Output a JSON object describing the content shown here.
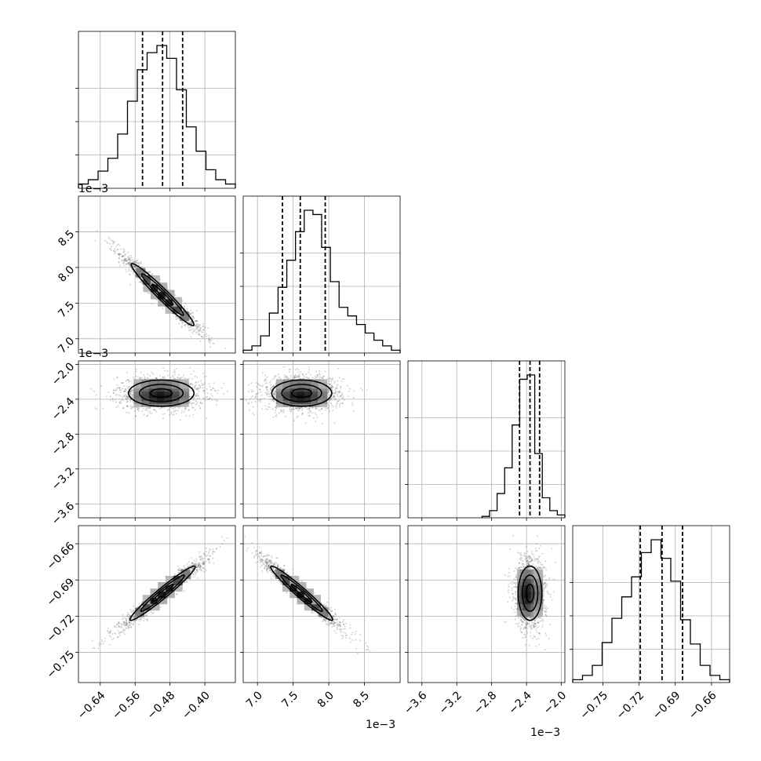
{
  "chart_data": {
    "type": "corner",
    "grid": true,
    "parameters": [
      {
        "range": [
          -0.69,
          -0.33
        ],
        "ticks": [
          -0.64,
          -0.56,
          -0.48,
          -0.4
        ],
        "tick_labels": [
          "−0.64",
          "−0.56",
          "−0.48",
          "−0.40"
        ],
        "offset": "1e−3",
        "quantiles": [
          -0.543,
          -0.497,
          -0.451
        ]
      },
      {
        "range": [
          6.8,
          9.0
        ],
        "ticks": [
          7.0,
          7.5,
          8.0,
          8.5
        ],
        "tick_labels": [
          "7.0",
          "7.5",
          "8.0",
          "8.5"
        ],
        "offset": "1e−3",
        "quantiles": [
          7.35,
          7.6,
          7.95
        ]
      },
      {
        "range": [
          -3.76,
          -1.96
        ],
        "ticks": [
          -3.6,
          -3.2,
          -2.8,
          -2.4,
          -2.0
        ],
        "tick_labels": [
          "−3.6",
          "−3.2",
          "−2.8",
          "−2.4",
          "−2.0"
        ],
        "offset": "1e−3",
        "quantiles": [
          -2.48,
          -2.36,
          -2.25
        ]
      },
      {
        "range": [
          -0.775,
          -0.645
        ],
        "ticks": [
          -0.75,
          -0.72,
          -0.69,
          -0.66
        ],
        "tick_labels": [
          "−0.75",
          "−0.72",
          "−0.69",
          "−0.66"
        ],
        "offset": "",
        "quantiles": [
          -0.719,
          -0.701,
          -0.684
        ]
      }
    ],
    "hist": [
      [
        0.03,
        0.06,
        0.12,
        0.21,
        0.38,
        0.61,
        0.83,
        0.95,
        1.0,
        0.91,
        0.69,
        0.43,
        0.26,
        0.13,
        0.06,
        0.03
      ],
      [
        0.02,
        0.05,
        0.12,
        0.28,
        0.46,
        0.65,
        0.85,
        1.0,
        0.97,
        0.74,
        0.5,
        0.32,
        0.26,
        0.2,
        0.14,
        0.09,
        0.05,
        0.02
      ],
      [
        0.01,
        0.05,
        0.17,
        0.35,
        0.65,
        0.97,
        1.0,
        0.45,
        0.14,
        0.05,
        0.02
      ],
      [
        0.02,
        0.05,
        0.12,
        0.28,
        0.45,
        0.6,
        0.74,
        0.91,
        1.0,
        0.87,
        0.71,
        0.44,
        0.27,
        0.12,
        0.05,
        0.02
      ]
    ],
    "panels_2d": [
      {
        "row": 1,
        "col": 0,
        "mean": [
          -0.497,
          7.62
        ],
        "sd": [
          0.048,
          0.29
        ],
        "rho": -0.97
      },
      {
        "row": 2,
        "col": 0,
        "mean": [
          -0.5,
          -2.33
        ],
        "sd": [
          0.05,
          0.1
        ],
        "rho": 0.0
      },
      {
        "row": 2,
        "col": 1,
        "mean": [
          7.62,
          -2.33
        ],
        "sd": [
          0.28,
          0.1
        ],
        "rho": 0.0
      },
      {
        "row": 3,
        "col": 0,
        "mean": [
          -0.497,
          -0.701
        ],
        "sd": [
          0.05,
          0.015
        ],
        "rho": 0.97
      },
      {
        "row": 3,
        "col": 1,
        "mean": [
          7.62,
          -0.701
        ],
        "sd": [
          0.29,
          0.015
        ],
        "rho": -0.97
      },
      {
        "row": 3,
        "col": 2,
        "mean": [
          -2.36,
          -0.701
        ],
        "sd": [
          0.09,
          0.015
        ],
        "rho": 0.0
      }
    ],
    "contour_sigmas": [
      0.5,
      1.0,
      1.5
    ]
  }
}
